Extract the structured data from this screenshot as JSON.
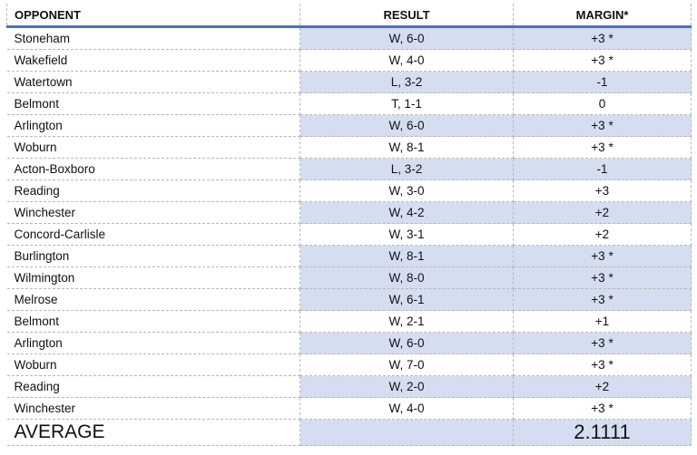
{
  "table": {
    "header": [
      "OPPONENT",
      "RESULT",
      "MARGIN*"
    ],
    "rows": [
      [
        "Stoneham",
        "W, 6-0",
        "+3 *"
      ],
      [
        "Wakefield",
        "W, 4-0",
        "+3 *"
      ],
      [
        "Watertown",
        "L, 3-2",
        "-1"
      ],
      [
        "Belmont",
        "T, 1-1",
        "0"
      ],
      [
        "Arlington",
        "W, 6-0",
        "+3 *"
      ],
      [
        "Woburn",
        "W, 8-1",
        "+3 *"
      ],
      [
        "Acton-Boxboro",
        "L, 3-2",
        "-1"
      ],
      [
        "Reading",
        "W, 3-0",
        "+3"
      ],
      [
        "Winchester",
        "W, 4-2",
        "+2"
      ],
      [
        "Concord-Carlisle",
        "W, 3-1",
        "+2"
      ],
      [
        "Burlington",
        "W, 8-1",
        "+3 *"
      ],
      [
        "Wilmington",
        "W, 8-0",
        "+3 *"
      ],
      [
        "Melrose",
        "W, 6-1",
        "+3 *"
      ],
      [
        "Belmont",
        "W, 2-1",
        "+1"
      ],
      [
        "Arlington",
        "W, 6-0",
        "+3 *"
      ],
      [
        "Woburn",
        "W, 7-0",
        "+3 *"
      ],
      [
        "Reading",
        "W, 2-0",
        "+2"
      ],
      [
        "Winchester",
        "W, 4-0",
        "+3 *"
      ]
    ],
    "average": {
      "label": "AVERAGE",
      "value": "2.1111"
    }
  }
}
